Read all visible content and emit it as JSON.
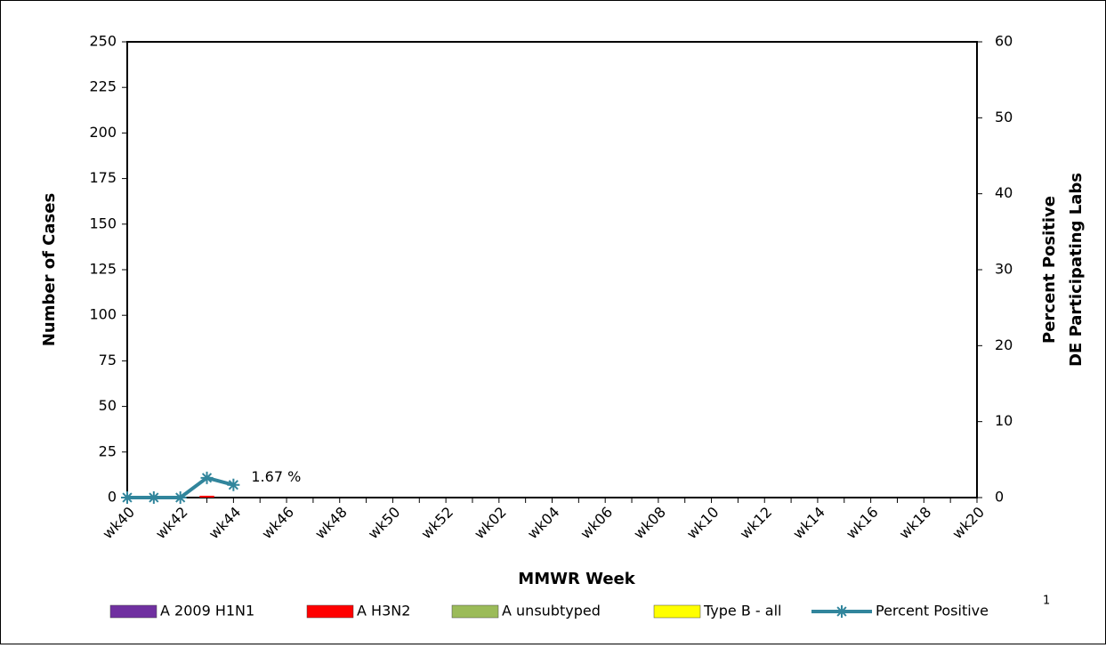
{
  "chart_data": {
    "type": "bar_line",
    "x_label": "MMWR Week",
    "y_label": "Number of Cases",
    "y2_label": [
      "Percent Positive",
      "DE Participating Labs"
    ],
    "categories": [
      "wk40",
      null,
      "wk42",
      null,
      "wk44",
      null,
      "wk46",
      null,
      "wk48",
      null,
      "wk50",
      null,
      "wk52",
      null,
      "wk02",
      null,
      "wk04",
      null,
      "wk06",
      null,
      "wk08",
      null,
      "wk10",
      null,
      "wk12",
      null,
      "wk14",
      null,
      "wk16",
      null,
      "wk18",
      null,
      "wk20"
    ],
    "ylim": [
      0,
      250
    ],
    "yticks": [
      0,
      25,
      50,
      75,
      100,
      125,
      150,
      175,
      200,
      225,
      250
    ],
    "y2lim": [
      0,
      60
    ],
    "y2ticks": [
      0,
      10,
      20,
      30,
      40,
      50,
      60
    ],
    "series": [
      {
        "name": "A 2009 H1N1",
        "type": "bar",
        "color": "#7030a0",
        "values": [
          0,
          0,
          0,
          0,
          0,
          null,
          null,
          null,
          null,
          null,
          null,
          null,
          null,
          null,
          null,
          null,
          null,
          null,
          null,
          null,
          null,
          null,
          null,
          null,
          null,
          null,
          null,
          null,
          null,
          null,
          null,
          null,
          null
        ]
      },
      {
        "name": "A H3N2",
        "type": "bar",
        "color": "#ff0000",
        "values": [
          0,
          0,
          0,
          1,
          0,
          null,
          null,
          null,
          null,
          null,
          null,
          null,
          null,
          null,
          null,
          null,
          null,
          null,
          null,
          null,
          null,
          null,
          null,
          null,
          null,
          null,
          null,
          null,
          null,
          null,
          null,
          null,
          null
        ]
      },
      {
        "name": "A unsubtyped",
        "type": "bar",
        "color": "#9bbb59",
        "values": [
          0,
          0,
          0,
          0,
          0,
          null,
          null,
          null,
          null,
          null,
          null,
          null,
          null,
          null,
          null,
          null,
          null,
          null,
          null,
          null,
          null,
          null,
          null,
          null,
          null,
          null,
          null,
          null,
          null,
          null,
          null,
          null,
          null
        ]
      },
      {
        "name": "Type B - all",
        "type": "bar",
        "color": "#ffff00",
        "values": [
          0,
          0,
          0,
          0,
          0,
          null,
          null,
          null,
          null,
          null,
          null,
          null,
          null,
          null,
          null,
          null,
          null,
          null,
          null,
          null,
          null,
          null,
          null,
          null,
          null,
          null,
          null,
          null,
          null,
          null,
          null,
          null,
          null
        ]
      },
      {
        "name": "Percent Positive",
        "type": "line",
        "axis": "y2",
        "color": "#31859c",
        "values": [
          0,
          0,
          0,
          2.6,
          1.67,
          null,
          null,
          null,
          null,
          null,
          null,
          null,
          null,
          null,
          null,
          null,
          null,
          null,
          null,
          null,
          null,
          null,
          null,
          null,
          null,
          null,
          null,
          null,
          null,
          null,
          null,
          null,
          null
        ],
        "value_labels": [
          null,
          null,
          null,
          null,
          "1.67 %",
          null,
          null,
          null,
          null,
          null,
          null,
          null,
          null,
          null,
          null,
          null,
          null,
          null,
          null,
          null,
          null,
          null,
          null,
          null,
          null,
          null,
          null,
          null,
          null,
          null,
          null,
          null,
          null
        ]
      }
    ],
    "legend_footnote": "1"
  }
}
